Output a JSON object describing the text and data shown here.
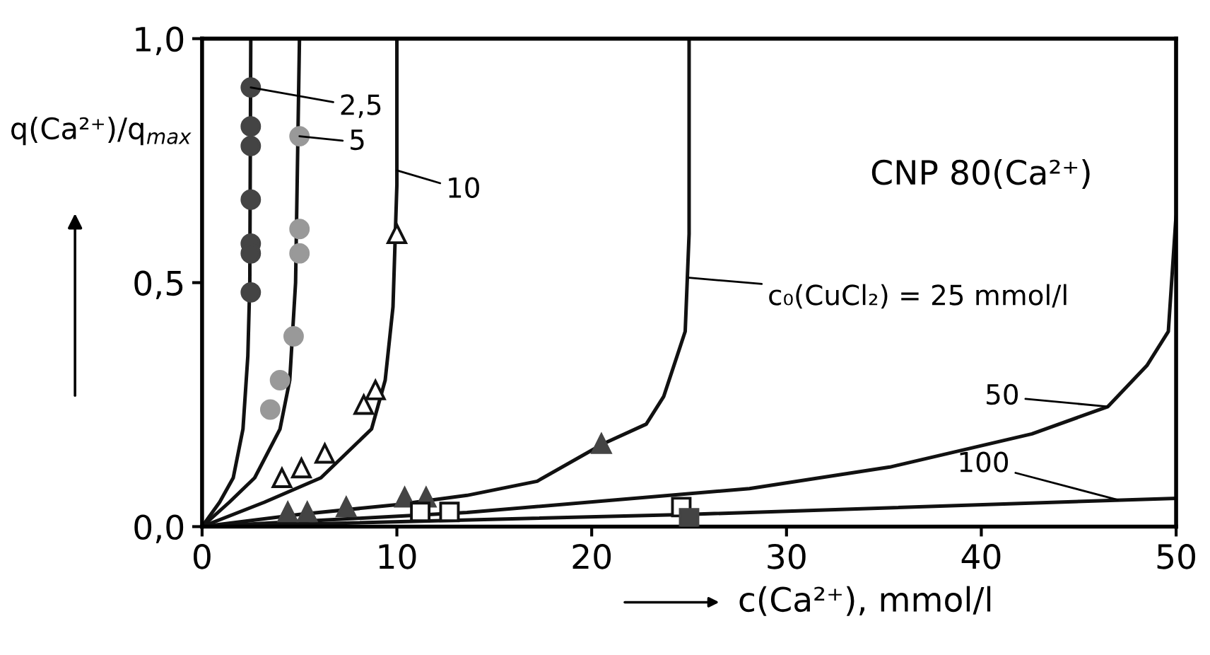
{
  "chart_data": {
    "type": "line",
    "xlabel": "c(Ca²⁺), mmol/l",
    "ylabel": "q(Ca²⁺)/q$_{max}$",
    "xlim": [
      0,
      50
    ],
    "ylim": [
      0,
      1
    ],
    "xticks": [
      0,
      10,
      20,
      30,
      40,
      50
    ],
    "yticks": [
      {
        "value": 0,
        "label": "0,0"
      },
      {
        "value": 0.5,
        "label": "0,5"
      },
      {
        "value": 1,
        "label": "1,0"
      }
    ],
    "grid": false,
    "legend": false,
    "line_style": "solid",
    "series": [
      {
        "color": "#111111",
        "marker": "none",
        "x": [
          0,
          0.9,
          1.6,
          2.1,
          2.35,
          2.45,
          2.5
        ],
        "values": [
          0,
          0.05,
          0.1,
          0.2,
          0.35,
          0.5,
          1.0
        ]
      },
      {
        "color": "#111111",
        "marker": "none",
        "x": [
          0,
          1.4,
          2.7,
          4.0,
          4.5,
          4.8,
          5
        ],
        "values": [
          0,
          0.05,
          0.1,
          0.2,
          0.3,
          0.5,
          1.0
        ]
      },
      {
        "color": "#111111",
        "marker": "none",
        "x": [
          0,
          3.2,
          6.1,
          8.7,
          9.4,
          9.8,
          10,
          10
        ],
        "values": [
          0,
          0.05,
          0.1,
          0.2,
          0.3,
          0.45,
          0.7,
          1.0
        ]
      },
      {
        "color": "#111111",
        "marker": "none",
        "x": [
          0,
          5,
          10,
          13.6,
          17.2,
          20.6,
          22.8,
          23.7,
          24.8,
          25,
          25
        ],
        "values": [
          0,
          0.025,
          0.045,
          0.064,
          0.093,
          0.17,
          0.21,
          0.267,
          0.4,
          0.6,
          1.0
        ]
      },
      {
        "color": "#111111",
        "marker": "none",
        "x": [
          0,
          13.6,
          28.1,
          35.3,
          42.6,
          46.5,
          48.5,
          49.6,
          50,
          50
        ],
        "values": [
          0,
          0.029,
          0.078,
          0.122,
          0.19,
          0.246,
          0.33,
          0.4,
          0.64,
          1.0
        ]
      },
      {
        "color": "#111111",
        "marker": "none",
        "x": [
          0,
          25,
          50
        ],
        "values": [
          0,
          0.025,
          0.058
        ]
      },
      {
        "type": "scatter",
        "color": "#444444",
        "marker": "circle",
        "x": [
          2.5,
          2.5,
          2.5,
          2.5,
          2.5,
          2.5,
          2.5
        ],
        "values": [
          0.9,
          0.82,
          0.78,
          0.67,
          0.58,
          0.56,
          0.48
        ]
      },
      {
        "type": "scatter",
        "color": "#999999",
        "marker": "circle",
        "x": [
          5.0,
          5.0,
          5.0,
          4.7,
          4.0,
          3.5
        ],
        "values": [
          0.8,
          0.61,
          0.56,
          0.39,
          0.3,
          0.24
        ]
      },
      {
        "type": "scatter",
        "color": "#ffffff",
        "marker": "triangle",
        "x": [
          10.0,
          8.9,
          8.3,
          6.3,
          5.1,
          4.1
        ],
        "values": [
          0.6,
          0.28,
          0.25,
          0.15,
          0.12,
          0.1
        ]
      },
      {
        "type": "scatter",
        "color": "#444444",
        "marker": "triangle",
        "x": [
          20.5,
          11.5,
          10.4,
          7.4,
          5.4,
          4.4
        ],
        "values": [
          0.17,
          0.06,
          0.06,
          0.04,
          0.03,
          0.03
        ]
      },
      {
        "type": "scatter",
        "color": "#ffffff",
        "marker": "square",
        "x": [
          11.2,
          12.7,
          24.6
        ],
        "values": [
          0.03,
          0.03,
          0.04
        ]
      },
      {
        "type": "scatter",
        "color": "#444444",
        "marker": "square",
        "x": [
          25
        ],
        "values": [
          0.017
        ]
      }
    ],
    "annotations": [
      {
        "text": "CNP 80(Ca²⁺)"
      },
      {
        "text": "2,5",
        "x": 2.5,
        "y": 0.9
      },
      {
        "text": "5",
        "x": 5,
        "y": 0.8
      },
      {
        "text": "10",
        "x": 10,
        "y": 0.73
      },
      {
        "text": "c₀(CuCl₂) = 25 mmol/l",
        "x": 25,
        "y": 0.51
      },
      {
        "text": "50",
        "x": 46.5,
        "y": 0.246
      },
      {
        "text": "100",
        "x": 47,
        "y": 0.055
      }
    ]
  }
}
